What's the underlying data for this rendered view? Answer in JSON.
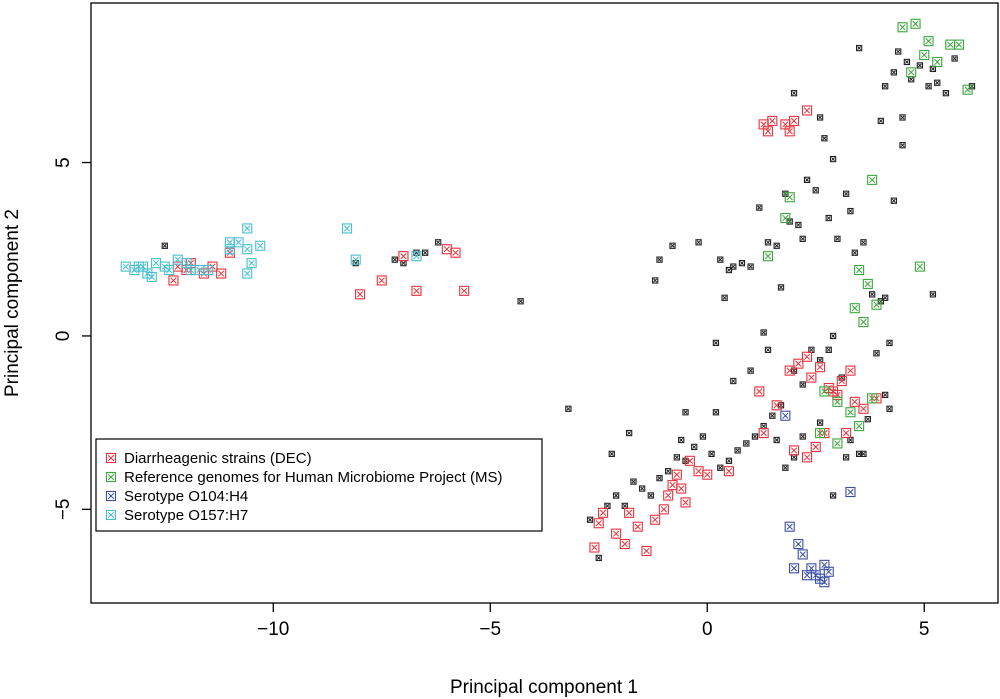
{
  "chart_data": {
    "type": "scatter",
    "xlabel": "Principal component 1",
    "ylabel": "Principal component 2",
    "xlim": [
      -14.2,
      6.7
    ],
    "ylim": [
      -7.7,
      9.6
    ],
    "xticks": [
      -10,
      -5,
      0,
      5
    ],
    "yticks": [
      -5,
      0,
      5
    ],
    "grid": false,
    "legend_position": "bottom-left",
    "series": [
      {
        "name": "Diarrheagenic strains (DEC)",
        "color": "#e8333c",
        "points": [
          [
            -12.2,
            2.0
          ],
          [
            -12.0,
            1.9
          ],
          [
            -11.9,
            2.1
          ],
          [
            -11.6,
            1.8
          ],
          [
            -11.4,
            2.0
          ],
          [
            -11.2,
            1.8
          ],
          [
            -12.3,
            1.6
          ],
          [
            -11.0,
            2.4
          ],
          [
            -8.0,
            1.2
          ],
          [
            -7.5,
            1.6
          ],
          [
            -7.0,
            2.3
          ],
          [
            -6.7,
            1.3
          ],
          [
            -6.0,
            2.5
          ],
          [
            -5.8,
            2.4
          ],
          [
            -5.6,
            1.3
          ],
          [
            1.3,
            6.1
          ],
          [
            1.4,
            5.9
          ],
          [
            1.5,
            6.2
          ],
          [
            1.8,
            6.1
          ],
          [
            1.9,
            5.9
          ],
          [
            2.0,
            6.2
          ],
          [
            2.3,
            6.5
          ],
          [
            -2.6,
            -6.1
          ],
          [
            -2.5,
            -5.4
          ],
          [
            -2.4,
            -5.1
          ],
          [
            -2.1,
            -5.7
          ],
          [
            -1.9,
            -6.0
          ],
          [
            -1.8,
            -5.1
          ],
          [
            -1.6,
            -5.5
          ],
          [
            -1.4,
            -6.2
          ],
          [
            -1.2,
            -5.3
          ],
          [
            -1.0,
            -5.0
          ],
          [
            -0.9,
            -4.6
          ],
          [
            -0.8,
            -4.3
          ],
          [
            -0.7,
            -4.0
          ],
          [
            -0.6,
            -4.4
          ],
          [
            -0.5,
            -4.8
          ],
          [
            -0.4,
            -3.6
          ],
          [
            -0.2,
            -3.9
          ],
          [
            0.0,
            -4.0
          ],
          [
            0.5,
            -3.9
          ],
          [
            1.3,
            -2.8
          ],
          [
            1.6,
            -2.0
          ],
          [
            1.9,
            -1.0
          ],
          [
            2.1,
            -0.8
          ],
          [
            2.3,
            -0.6
          ],
          [
            2.4,
            -1.2
          ],
          [
            2.6,
            -0.9
          ],
          [
            2.8,
            -1.5
          ],
          [
            2.9,
            -1.6
          ],
          [
            3.0,
            -1.7
          ],
          [
            3.1,
            -1.3
          ],
          [
            3.3,
            -1.0
          ],
          [
            3.4,
            -1.9
          ],
          [
            3.6,
            -2.1
          ],
          [
            3.9,
            -1.8
          ],
          [
            2.0,
            -3.3
          ],
          [
            2.3,
            -3.5
          ],
          [
            2.5,
            -3.2
          ],
          [
            2.7,
            -2.8
          ],
          [
            3.2,
            -2.8
          ],
          [
            1.2,
            -1.6
          ]
        ]
      },
      {
        "name": "Reference genomes for Human Microbiome Project (MS)",
        "color": "#3aa63a",
        "points": [
          [
            4.5,
            8.9
          ],
          [
            4.8,
            9.0
          ],
          [
            5.1,
            8.5
          ],
          [
            5.3,
            7.9
          ],
          [
            5.6,
            8.4
          ],
          [
            5.8,
            8.4
          ],
          [
            6.0,
            7.1
          ],
          [
            5.0,
            8.1
          ],
          [
            4.7,
            7.6
          ],
          [
            3.8,
            4.5
          ],
          [
            4.9,
            2.0
          ],
          [
            3.5,
            1.9
          ],
          [
            3.7,
            1.5
          ],
          [
            1.9,
            4.0
          ],
          [
            1.8,
            3.4
          ],
          [
            1.4,
            2.3
          ],
          [
            3.4,
            0.8
          ],
          [
            3.6,
            0.4
          ],
          [
            3.9,
            0.9
          ],
          [
            2.7,
            -1.6
          ],
          [
            3.0,
            -1.9
          ],
          [
            3.3,
            -2.2
          ],
          [
            3.5,
            -2.6
          ],
          [
            3.8,
            -1.8
          ],
          [
            2.6,
            -2.8
          ],
          [
            3.0,
            -3.1
          ]
        ]
      },
      {
        "name": "Serotype O104:H4",
        "color": "#3a4ea3",
        "points": [
          [
            1.9,
            -5.5
          ],
          [
            2.1,
            -6.0
          ],
          [
            2.2,
            -6.3
          ],
          [
            2.4,
            -6.7
          ],
          [
            2.5,
            -6.9
          ],
          [
            2.6,
            -7.0
          ],
          [
            2.7,
            -7.1
          ],
          [
            2.8,
            -6.8
          ],
          [
            2.0,
            -6.7
          ],
          [
            2.3,
            -6.9
          ],
          [
            2.7,
            -6.6
          ],
          [
            3.3,
            -4.5
          ],
          [
            1.8,
            -2.3
          ]
        ]
      },
      {
        "name": "Serotype O157:H7",
        "color": "#45bfd0",
        "points": [
          [
            -13.4,
            2.0
          ],
          [
            -13.2,
            1.9
          ],
          [
            -13.0,
            2.0
          ],
          [
            -12.9,
            1.8
          ],
          [
            -12.7,
            2.1
          ],
          [
            -12.5,
            2.0
          ],
          [
            -12.4,
            1.9
          ],
          [
            -12.2,
            2.2
          ],
          [
            -12.0,
            2.1
          ],
          [
            -11.9,
            1.9
          ],
          [
            -11.7,
            1.9
          ],
          [
            -11.5,
            1.9
          ],
          [
            -11.0,
            2.5
          ],
          [
            -11.0,
            2.7
          ],
          [
            -10.8,
            2.7
          ],
          [
            -10.6,
            2.5
          ],
          [
            -10.6,
            1.8
          ],
          [
            -10.5,
            2.1
          ],
          [
            -10.3,
            2.6
          ],
          [
            -10.6,
            3.1
          ],
          [
            -8.3,
            3.1
          ],
          [
            -8.1,
            2.2
          ],
          [
            -6.7,
            2.3
          ],
          [
            -13.1,
            2.0
          ],
          [
            -12.8,
            1.7
          ]
        ]
      },
      {
        "name": "",
        "color": "#222222",
        "points": [
          [
            -12.5,
            2.6
          ],
          [
            -8.1,
            2.1
          ],
          [
            -7.2,
            2.2
          ],
          [
            -7.0,
            2.1
          ],
          [
            -6.7,
            2.4
          ],
          [
            -6.5,
            2.4
          ],
          [
            -6.2,
            2.7
          ],
          [
            -4.3,
            1.0
          ],
          [
            -1.2,
            1.6
          ],
          [
            -1.1,
            2.2
          ],
          [
            -0.8,
            2.6
          ],
          [
            -0.2,
            2.7
          ],
          [
            0.3,
            2.2
          ],
          [
            0.5,
            1.9
          ],
          [
            0.4,
            1.1
          ],
          [
            0.6,
            2.0
          ],
          [
            0.8,
            2.1
          ],
          [
            1.0,
            2.0
          ],
          [
            1.2,
            3.7
          ],
          [
            1.4,
            2.7
          ],
          [
            1.3,
            0.1
          ],
          [
            1.6,
            2.6
          ],
          [
            1.7,
            1.4
          ],
          [
            1.8,
            4.1
          ],
          [
            1.9,
            3.3
          ],
          [
            2.0,
            7.0
          ],
          [
            2.1,
            3.2
          ],
          [
            2.2,
            2.8
          ],
          [
            2.3,
            4.5
          ],
          [
            2.5,
            4.2
          ],
          [
            2.6,
            6.3
          ],
          [
            2.7,
            5.7
          ],
          [
            2.8,
            3.4
          ],
          [
            2.9,
            5.1
          ],
          [
            3.0,
            2.8
          ],
          [
            3.2,
            4.1
          ],
          [
            3.3,
            3.6
          ],
          [
            3.4,
            2.4
          ],
          [
            3.6,
            2.7
          ],
          [
            3.8,
            1.2
          ],
          [
            4.0,
            1.0
          ],
          [
            4.1,
            1.1
          ],
          [
            4.3,
            3.9
          ],
          [
            4.5,
            6.3
          ],
          [
            4.6,
            7.9
          ],
          [
            4.7,
            7.4
          ],
          [
            4.9,
            7.8
          ],
          [
            5.1,
            7.2
          ],
          [
            5.2,
            7.7
          ],
          [
            5.3,
            7.3
          ],
          [
            5.5,
            7.0
          ],
          [
            5.7,
            8.0
          ],
          [
            6.1,
            7.2
          ],
          [
            3.5,
            8.3
          ],
          [
            4.1,
            7.2
          ],
          [
            4.3,
            7.6
          ],
          [
            4.4,
            8.2
          ],
          [
            4.0,
            6.2
          ],
          [
            4.5,
            5.5
          ],
          [
            5.2,
            1.2
          ],
          [
            4.2,
            -0.2
          ],
          [
            3.9,
            -0.5
          ],
          [
            4.1,
            -1.7
          ],
          [
            4.2,
            -2.1
          ],
          [
            3.7,
            -2.4
          ],
          [
            3.5,
            -3.4
          ],
          [
            3.3,
            -3.0
          ],
          [
            3.1,
            -1.2
          ],
          [
            2.9,
            0.0
          ],
          [
            2.8,
            -0.4
          ],
          [
            2.6,
            -0.7
          ],
          [
            2.4,
            -0.4
          ],
          [
            2.2,
            -1.4
          ],
          [
            2.0,
            -1.0
          ],
          [
            1.7,
            -2.0
          ],
          [
            1.5,
            -2.3
          ],
          [
            1.3,
            -2.6
          ],
          [
            1.1,
            -2.9
          ],
          [
            0.9,
            -3.1
          ],
          [
            0.7,
            -3.3
          ],
          [
            0.5,
            -3.6
          ],
          [
            0.3,
            -3.8
          ],
          [
            0.1,
            -3.4
          ],
          [
            -0.1,
            -2.9
          ],
          [
            -0.3,
            -3.2
          ],
          [
            -0.5,
            -3.6
          ],
          [
            -0.7,
            -3.5
          ],
          [
            -0.9,
            -3.9
          ],
          [
            -1.1,
            -4.1
          ],
          [
            -1.3,
            -4.6
          ],
          [
            -1.5,
            -4.4
          ],
          [
            -1.7,
            -4.2
          ],
          [
            -1.9,
            -4.9
          ],
          [
            -2.1,
            -4.6
          ],
          [
            -2.3,
            -4.9
          ],
          [
            -2.5,
            -6.4
          ],
          [
            -2.7,
            -5.3
          ],
          [
            -2.2,
            -3.4
          ],
          [
            -1.8,
            -2.8
          ],
          [
            -3.2,
            -2.1
          ],
          [
            -0.5,
            -2.2
          ],
          [
            0.2,
            -0.2
          ],
          [
            0.6,
            -1.3
          ],
          [
            1.0,
            -1.0
          ],
          [
            1.4,
            -0.4
          ],
          [
            1.6,
            -3.0
          ],
          [
            1.8,
            -3.8
          ],
          [
            2.0,
            -3.5
          ],
          [
            2.2,
            -2.9
          ],
          [
            2.6,
            -2.5
          ],
          [
            2.9,
            -4.6
          ],
          [
            3.2,
            -3.5
          ],
          [
            3.6,
            -3.4
          ],
          [
            0.2,
            -2.2
          ],
          [
            -0.6,
            -3.0
          ]
        ]
      }
    ]
  }
}
